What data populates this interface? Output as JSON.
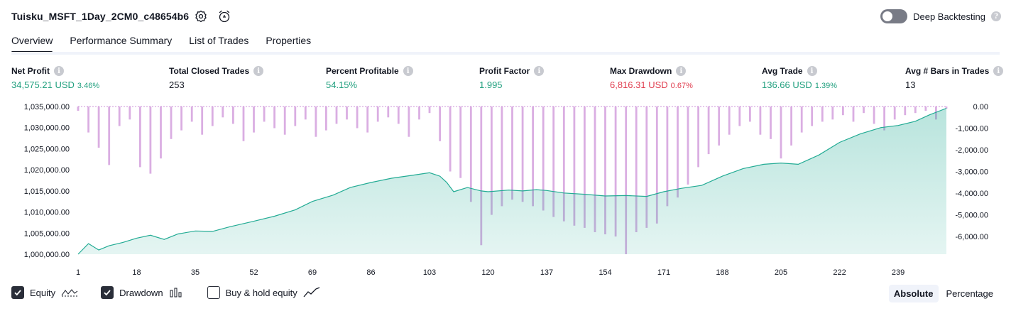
{
  "header": {
    "title": "Tuisku_MSFT_1Day_2CM0_c48654b6",
    "deep_backtesting_label": "Deep Backtesting",
    "deep_backtesting_on": false
  },
  "tabs": [
    {
      "label": "Overview",
      "active": true
    },
    {
      "label": "Performance Summary",
      "active": false
    },
    {
      "label": "List of Trades",
      "active": false
    },
    {
      "label": "Properties",
      "active": false
    }
  ],
  "metrics": [
    {
      "label": "Net Profit",
      "value": "34,575.21 USD",
      "pct": "3.46%",
      "color": "green"
    },
    {
      "label": "Total Closed Trades",
      "value": "253",
      "pct": "",
      "color": "dark"
    },
    {
      "label": "Percent Profitable",
      "value": "54.15%",
      "pct": "",
      "color": "green"
    },
    {
      "label": "Profit Factor",
      "value": "1.995",
      "pct": "",
      "color": "green"
    },
    {
      "label": "Max Drawdown",
      "value": "6,816.31 USD",
      "pct": "0.67%",
      "color": "red"
    },
    {
      "label": "Avg Trade",
      "value": "136.66 USD",
      "pct": "1.39%",
      "color": "green"
    },
    {
      "label": "Avg # Bars in Trades",
      "value": "13",
      "pct": "",
      "color": "dark"
    }
  ],
  "chart_data": {
    "type": "area",
    "x_ticks": [
      1,
      18,
      35,
      52,
      69,
      86,
      103,
      120,
      137,
      154,
      171,
      188,
      205,
      222,
      239
    ],
    "x_range": [
      1,
      253
    ],
    "left_axis": {
      "ticks": [
        "1,035,000.00",
        "1,030,000.00",
        "1,025,000.00",
        "1,020,000.00",
        "1,015,000.00",
        "1,010,000.00",
        "1,005,000.00",
        "1,000,000.00"
      ],
      "range": [
        1000000,
        1035000
      ]
    },
    "right_axis": {
      "ticks": [
        "0.00",
        "-1,000.00",
        "-2,000.00",
        "-3,000.00",
        "-4,000.00",
        "-5,000.00",
        "-6,000.00"
      ],
      "range": [
        -6816.31,
        0
      ]
    },
    "series": [
      {
        "name": "Equity",
        "kind": "area",
        "color": "#22ab94",
        "x": [
          1,
          4,
          7,
          10,
          14,
          18,
          22,
          26,
          30,
          35,
          40,
          45,
          52,
          58,
          64,
          69,
          75,
          80,
          86,
          92,
          98,
          103,
          106,
          108,
          110,
          114,
          118,
          120,
          126,
          130,
          134,
          137,
          142,
          148,
          154,
          160,
          166,
          171,
          176,
          182,
          188,
          194,
          200,
          205,
          210,
          216,
          222,
          228,
          234,
          239,
          244,
          248,
          253
        ],
        "y": [
          1000000,
          1002500,
          1001000,
          1002000,
          1002800,
          1003800,
          1004500,
          1003500,
          1004800,
          1005500,
          1005400,
          1006500,
          1007800,
          1009000,
          1010500,
          1012500,
          1014000,
          1015800,
          1017000,
          1018000,
          1018700,
          1019300,
          1018500,
          1017000,
          1014800,
          1015800,
          1015000,
          1014800,
          1015200,
          1015000,
          1015300,
          1015100,
          1014500,
          1014200,
          1013800,
          1013900,
          1013700,
          1014800,
          1015600,
          1016300,
          1018500,
          1020300,
          1021300,
          1021600,
          1021300,
          1023500,
          1026500,
          1028500,
          1030000,
          1030500,
          1031500,
          1033000,
          1034575.21
        ]
      },
      {
        "name": "Drawdown",
        "kind": "bars",
        "color": "#ce93d8",
        "x": [
          1,
          4,
          7,
          10,
          13,
          16,
          19,
          22,
          25,
          28,
          31,
          34,
          37,
          40,
          43,
          46,
          49,
          52,
          55,
          58,
          61,
          64,
          67,
          70,
          73,
          76,
          79,
          82,
          85,
          88,
          91,
          94,
          97,
          100,
          103,
          106,
          109,
          112,
          115,
          118,
          121,
          124,
          127,
          130,
          133,
          136,
          139,
          142,
          145,
          148,
          151,
          154,
          157,
          160,
          163,
          166,
          169,
          172,
          175,
          178,
          181,
          184,
          187,
          190,
          193,
          196,
          199,
          202,
          205,
          208,
          211,
          214,
          217,
          220,
          223,
          226,
          229,
          232,
          235,
          238,
          241,
          244,
          247,
          250,
          253
        ],
        "y": [
          -200,
          -1200,
          -1900,
          -2700,
          -900,
          -600,
          -2800,
          -3100,
          -2400,
          -1500,
          -1100,
          -700,
          -1300,
          -900,
          -500,
          -800,
          -1600,
          -1200,
          -700,
          -1000,
          -1300,
          -900,
          -600,
          -1400,
          -1100,
          -800,
          -600,
          -1000,
          -1200,
          -700,
          -500,
          -800,
          -1400,
          -600,
          -300,
          -1600,
          -3000,
          -3300,
          -4400,
          -6400,
          -5000,
          -4600,
          -4300,
          -4400,
          -4600,
          -4800,
          -5100,
          -5300,
          -5500,
          -5600,
          -5800,
          -5900,
          -6000,
          -6816.31,
          -5800,
          -5600,
          -5400,
          -4600,
          -4200,
          -3600,
          -2800,
          -2200,
          -1800,
          -1300,
          -900,
          -700,
          -1300,
          -1500,
          -2400,
          -1800,
          -1200,
          -900,
          -700,
          -600,
          -400,
          -700,
          -300,
          -800,
          -1100,
          -600,
          -400,
          -300,
          -200,
          -600,
          -100
        ]
      }
    ]
  },
  "legend": {
    "equity_label": "Equity",
    "equity_checked": true,
    "drawdown_label": "Drawdown",
    "drawdown_checked": true,
    "buyhold_label": "Buy & hold equity",
    "buyhold_checked": false
  },
  "view_mode": {
    "absolute_label": "Absolute",
    "percentage_label": "Percentage",
    "selected": "Absolute"
  }
}
